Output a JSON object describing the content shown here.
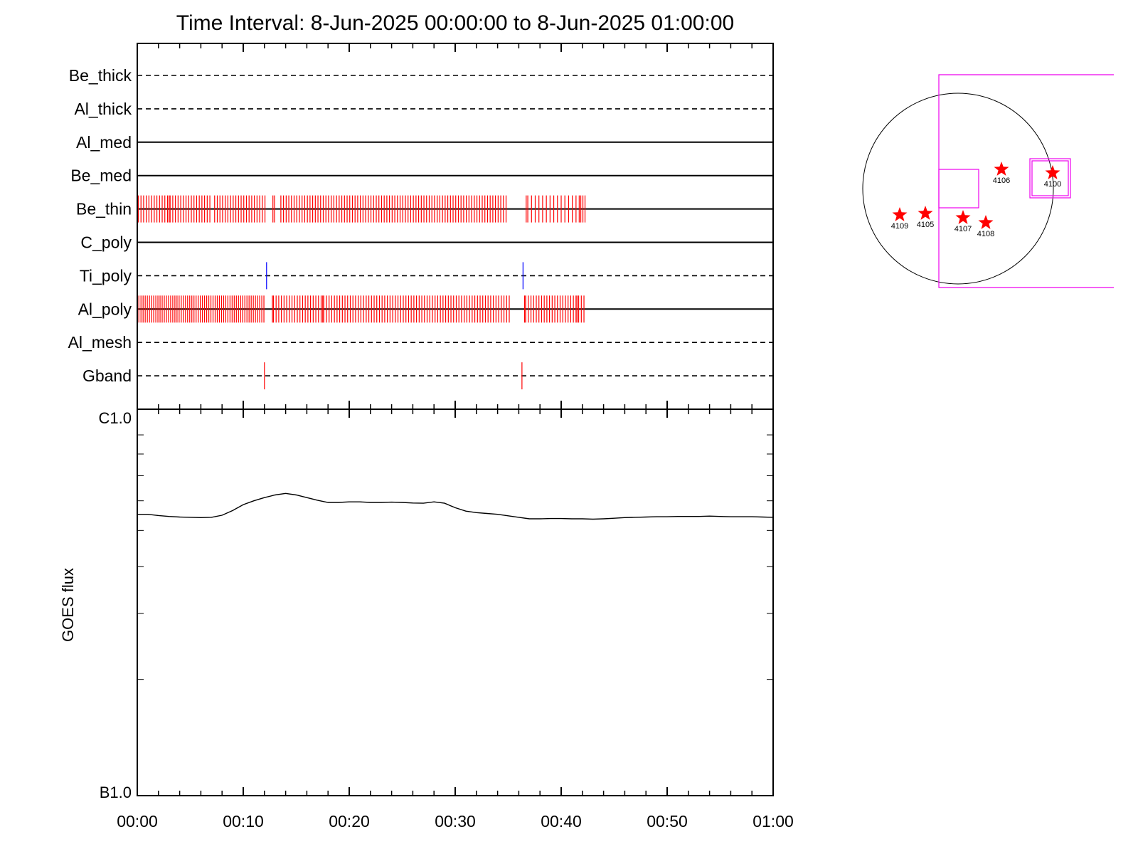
{
  "chart_data": [
    {
      "type": "event_timeline",
      "title": "Time Interval:  8-Jun-2025 00:00:00 to  8-Jun-2025 01:00:00",
      "x_range_minutes": [
        0,
        60
      ],
      "x_ticks": [
        "00:00",
        "00:10",
        "00:20",
        "00:30",
        "00:40",
        "00:50",
        "01:00"
      ],
      "x_tick_values_min": [
        0,
        10,
        20,
        30,
        40,
        50,
        60
      ],
      "channels": [
        {
          "name": "Be_thick",
          "line": "dashed",
          "events": []
        },
        {
          "name": "Al_thick",
          "line": "dashed",
          "events": []
        },
        {
          "name": "Al_med",
          "line": "solid",
          "events": []
        },
        {
          "name": "Be_med",
          "line": "solid",
          "events": []
        },
        {
          "name": "Be_thin",
          "line": "solid",
          "event_color": "#ff0000",
          "events": [
            0.1,
            0.35,
            0.6,
            0.85,
            1.1,
            1.35,
            1.6,
            1.85,
            2.1,
            2.35,
            2.6,
            2.85,
            3.0,
            3.1,
            3.35,
            3.6,
            3.85,
            4.1,
            4.35,
            4.6,
            4.85,
            5.1,
            5.35,
            5.6,
            5.85,
            6.1,
            6.35,
            6.6,
            6.85,
            7.3,
            7.55,
            7.8,
            8.05,
            8.3,
            8.55,
            8.8,
            9.05,
            9.3,
            9.55,
            9.8,
            10.05,
            10.3,
            10.55,
            10.8,
            11.05,
            11.3,
            11.55,
            11.8,
            12.05,
            12.8,
            12.95,
            13.55,
            13.8,
            14.05,
            14.3,
            14.55,
            14.8,
            15.05,
            15.3,
            15.55,
            15.8,
            16.05,
            16.3,
            16.55,
            16.8,
            17.05,
            17.3,
            17.55,
            17.8,
            18.05,
            18.3,
            18.55,
            18.8,
            19.05,
            19.3,
            19.55,
            19.8,
            20.05,
            20.3,
            20.55,
            20.8,
            21.05,
            21.3,
            21.55,
            21.8,
            22.05,
            22.3,
            22.55,
            22.8,
            23.05,
            23.3,
            23.55,
            23.8,
            24.05,
            24.3,
            24.55,
            24.8,
            25.05,
            25.3,
            25.55,
            25.8,
            26.05,
            26.3,
            26.55,
            26.8,
            27.05,
            27.3,
            27.55,
            27.8,
            28.05,
            28.3,
            28.55,
            28.8,
            29.05,
            29.3,
            29.55,
            29.8,
            30.05,
            30.3,
            30.55,
            30.8,
            31.05,
            31.3,
            31.55,
            31.8,
            32.05,
            32.3,
            32.55,
            32.8,
            33.05,
            33.3,
            33.55,
            33.8,
            34.05,
            34.3,
            34.55,
            34.8,
            36.7,
            36.85,
            37.2,
            37.55,
            37.9,
            38.25,
            38.6,
            38.95,
            39.3,
            39.65,
            40.0,
            40.35,
            40.7,
            41.05,
            41.4,
            41.7,
            41.85,
            42.05,
            42.25
          ]
        },
        {
          "name": "C_poly",
          "line": "solid",
          "events": []
        },
        {
          "name": "Ti_poly",
          "line": "dashed",
          "event_color": "#0000ff",
          "events": [
            12.2,
            36.4
          ]
        },
        {
          "name": "Al_poly",
          "line": "solid",
          "event_color": "#ff0000",
          "events": [
            0.15,
            0.35,
            0.55,
            0.75,
            0.95,
            1.15,
            1.35,
            1.55,
            1.75,
            1.95,
            2.15,
            2.35,
            2.55,
            2.75,
            2.95,
            3.15,
            3.35,
            3.55,
            3.75,
            3.95,
            4.15,
            4.35,
            4.55,
            4.75,
            4.95,
            5.15,
            5.35,
            5.55,
            5.75,
            5.95,
            6.15,
            6.35,
            6.55,
            6.75,
            6.95,
            7.15,
            7.35,
            7.55,
            7.75,
            7.95,
            8.15,
            8.35,
            8.55,
            8.75,
            8.95,
            9.15,
            9.35,
            9.55,
            9.75,
            9.95,
            10.15,
            10.35,
            10.55,
            10.75,
            10.95,
            11.15,
            11.35,
            11.55,
            11.75,
            11.95,
            12.75,
            12.85,
            13.1,
            13.35,
            13.6,
            13.85,
            14.1,
            14.35,
            14.6,
            14.85,
            15.1,
            15.35,
            15.6,
            15.85,
            16.1,
            16.35,
            16.6,
            16.85,
            17.1,
            17.35,
            17.5,
            17.6,
            17.85,
            18.1,
            18.35,
            18.6,
            18.85,
            19.1,
            19.35,
            19.6,
            19.85,
            20.1,
            20.35,
            20.6,
            20.85,
            21.1,
            21.35,
            21.6,
            21.85,
            22.1,
            22.35,
            22.6,
            22.85,
            23.1,
            23.35,
            23.6,
            23.85,
            24.1,
            24.35,
            24.6,
            24.85,
            25.1,
            25.35,
            25.6,
            25.85,
            26.1,
            26.35,
            26.6,
            26.85,
            27.1,
            27.35,
            27.6,
            27.85,
            28.1,
            28.35,
            28.6,
            28.85,
            29.1,
            29.35,
            29.6,
            29.85,
            30.1,
            30.35,
            30.6,
            30.85,
            31.1,
            31.35,
            31.6,
            31.85,
            32.1,
            32.35,
            32.6,
            32.85,
            33.1,
            33.35,
            33.6,
            33.85,
            34.1,
            34.35,
            34.6,
            34.85,
            35.1,
            36.55,
            36.65,
            36.9,
            37.15,
            37.4,
            37.65,
            37.9,
            38.15,
            38.4,
            38.65,
            38.9,
            39.15,
            39.4,
            39.65,
            39.9,
            40.15,
            40.4,
            40.65,
            40.9,
            41.15,
            41.4,
            41.5,
            41.65,
            41.9,
            42.15
          ]
        },
        {
          "name": "Al_mesh",
          "line": "dashed",
          "events": []
        },
        {
          "name": "Gband",
          "line": "dashed",
          "event_color": "#ff0000",
          "events": [
            12.0,
            36.3
          ]
        }
      ]
    },
    {
      "type": "line",
      "ylabel": "GOES flux",
      "y_scale": "log",
      "y_tick_labels": [
        "C1.0",
        "B1.0"
      ],
      "ylim_w_m2": [
        1e-07,
        1e-06
      ],
      "x_range_minutes": [
        0,
        60
      ],
      "series": [
        {
          "color": "#000000",
          "x_min": [
            0,
            1,
            2,
            3,
            4,
            5,
            6,
            7,
            8,
            9,
            10,
            11,
            12,
            13,
            14,
            15,
            16,
            17,
            18,
            19,
            20,
            21,
            22,
            23,
            24,
            25,
            26,
            27,
            28,
            29,
            30,
            31,
            32,
            33,
            34,
            35,
            36,
            37,
            38,
            39,
            40,
            41,
            42,
            43,
            44,
            45,
            46,
            47,
            48,
            49,
            50,
            51,
            52,
            53,
            54,
            55,
            56,
            57,
            58,
            59,
            60
          ],
          "flux_w_m2": [
            5.52e-07,
            5.52e-07,
            5.48e-07,
            5.45e-07,
            5.43e-07,
            5.42e-07,
            5.41e-07,
            5.42e-07,
            5.49e-07,
            5.65e-07,
            5.86e-07,
            6e-07,
            6.12e-07,
            6.22e-07,
            6.28e-07,
            6.22e-07,
            6.12e-07,
            6.02e-07,
            5.94e-07,
            5.94e-07,
            5.96e-07,
            5.96e-07,
            5.94e-07,
            5.94e-07,
            5.95e-07,
            5.94e-07,
            5.92e-07,
            5.91e-07,
            5.96e-07,
            5.91e-07,
            5.75e-07,
            5.63e-07,
            5.58e-07,
            5.55e-07,
            5.52e-07,
            5.47e-07,
            5.42e-07,
            5.37e-07,
            5.37e-07,
            5.38e-07,
            5.38e-07,
            5.37e-07,
            5.37e-07,
            5.36e-07,
            5.37e-07,
            5.39e-07,
            5.41e-07,
            5.42e-07,
            5.43e-07,
            5.44e-07,
            5.44e-07,
            5.45e-07,
            5.45e-07,
            5.45e-07,
            5.46e-07,
            5.45e-07,
            5.44e-07,
            5.44e-07,
            5.44e-07,
            5.43e-07,
            5.42e-07
          ]
        }
      ]
    },
    {
      "type": "solar_disk_map",
      "box_color": "#ee00ee",
      "marker_color": "#ff0000",
      "regions": [
        {
          "label": "4106"
        },
        {
          "label": "4100"
        },
        {
          "label": "4109"
        },
        {
          "label": "4105"
        },
        {
          "label": "4107"
        },
        {
          "label": "4108"
        }
      ]
    }
  ]
}
